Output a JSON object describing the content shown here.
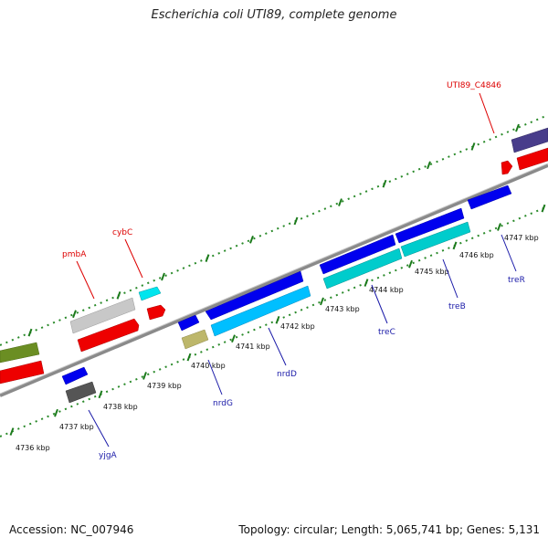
{
  "title": "Escherichia coli UTI89, complete genome",
  "footer": {
    "accession": "Accession: NC_007946",
    "summary": "Topology: circular; Length: 5,065,741 bp; Genes: 5,131"
  },
  "colors": {
    "forward_label": "#dd0000",
    "reverse_label": "#1a1aa8",
    "tick": "#1b7a1b",
    "backbone": "#8a8a8a"
  },
  "ticks": [
    {
      "label": "4736 kbp"
    },
    {
      "label": "4737 kbp"
    },
    {
      "label": "4738 kbp"
    },
    {
      "label": "4739 kbp"
    },
    {
      "label": "4740 kbp"
    },
    {
      "label": "4741 kbp"
    },
    {
      "label": "4742 kbp"
    },
    {
      "label": "4743 kbp"
    },
    {
      "label": "4744 kbp"
    },
    {
      "label": "4745 kbp"
    },
    {
      "label": "4746 kbp"
    },
    {
      "label": "4747 kbp"
    }
  ],
  "gene_labels": [
    {
      "text": "pmbA",
      "strand": "forward"
    },
    {
      "text": "cybC",
      "strand": "forward"
    },
    {
      "text": "UTI89_C4846",
      "strand": "forward"
    },
    {
      "text": "yjgA",
      "strand": "reverse"
    },
    {
      "text": "nrdG",
      "strand": "reverse"
    },
    {
      "text": "nrdD",
      "strand": "reverse"
    },
    {
      "text": "treC",
      "strand": "reverse"
    },
    {
      "text": "treB",
      "strand": "reverse"
    },
    {
      "text": "treR",
      "strand": "reverse"
    }
  ]
}
